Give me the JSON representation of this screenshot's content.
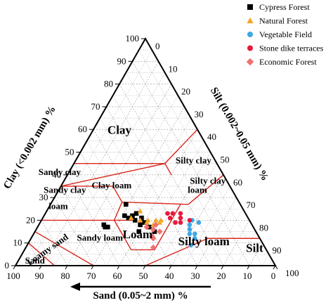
{
  "chart_data": {
    "type": "scatter",
    "subtype": "ternary",
    "axes": {
      "sand": {
        "label": "Sand (0.05~2 mm) %",
        "ticks": [
          100,
          90,
          80,
          70,
          60,
          50,
          40,
          30,
          20,
          10,
          0
        ]
      },
      "clay": {
        "label": "Clay (<0.002 mm) %",
        "ticks": [
          0,
          10,
          20,
          30,
          40,
          50,
          60,
          70,
          80,
          90,
          100
        ]
      },
      "silt": {
        "label": "Silt (0.002~0.05 mm) %",
        "ticks": [
          0,
          10,
          20,
          30,
          40,
          50,
          60,
          70,
          80,
          90,
          100
        ]
      }
    },
    "zones": [
      {
        "id": "clay",
        "label": "Clay",
        "size": "big"
      },
      {
        "id": "sandy-clay",
        "label": "Sandy clay"
      },
      {
        "id": "silty-clay",
        "label": "Silty clay"
      },
      {
        "id": "sandy-clay-loam-1",
        "label": "Sandy clay"
      },
      {
        "id": "sandy-clay-loam-2",
        "label": "loam"
      },
      {
        "id": "clay-loam",
        "label": "Clay loam"
      },
      {
        "id": "silty-clay-loam-1",
        "label": "Silty clay"
      },
      {
        "id": "silty-clay-loam-2",
        "label": "loam"
      },
      {
        "id": "sandy-loam",
        "label": "Sandy  loam"
      },
      {
        "id": "loam",
        "label": "Loam",
        "size": "big"
      },
      {
        "id": "silty-loam",
        "label": "Silty loam",
        "size": "big"
      },
      {
        "id": "loamy-sand",
        "label": "Loamy sand"
      },
      {
        "id": "sand",
        "label": "Sand"
      },
      {
        "id": "silt",
        "label": "Silt",
        "size": "big"
      }
    ],
    "legend_position": "top-right",
    "grid": true,
    "series": [
      {
        "name": "Cypress Forest",
        "color": "#000000",
        "marker": "square",
        "points": [
          {
            "sand": 44,
            "clay": 27
          },
          {
            "sand": 47,
            "clay": 22
          },
          {
            "sand": 44,
            "clay": 22
          },
          {
            "sand": 42,
            "clay": 23
          },
          {
            "sand": 44,
            "clay": 20
          },
          {
            "sand": 43,
            "clay": 18
          },
          {
            "sand": 41,
            "clay": 19
          },
          {
            "sand": 40,
            "clay": 17
          },
          {
            "sand": 57,
            "clay": 18
          },
          {
            "sand": 57,
            "clay": 17
          },
          {
            "sand": 56,
            "clay": 17
          },
          {
            "sand": 45,
            "clay": 15
          },
          {
            "sand": 39,
            "clay": 15
          },
          {
            "sand": 46,
            "clay": 21
          },
          {
            "sand": 41,
            "clay": 21
          }
        ]
      },
      {
        "name": "Natural Forest",
        "color": "#f5a623",
        "marker": "triangle",
        "points": [
          {
            "sand": 40,
            "clay": 24
          },
          {
            "sand": 45,
            "clay": 21
          },
          {
            "sand": 42,
            "clay": 20
          },
          {
            "sand": 39,
            "clay": 20
          },
          {
            "sand": 40,
            "clay": 19
          },
          {
            "sand": 38,
            "clay": 18
          },
          {
            "sand": 36,
            "clay": 20
          },
          {
            "sand": 35,
            "clay": 19
          },
          {
            "sand": 34,
            "clay": 20
          }
        ]
      },
      {
        "name": "Vegetable Field",
        "color": "#3ea8e5",
        "marker": "circle",
        "points": [
          {
            "sand": 24,
            "clay": 18
          },
          {
            "sand": 25,
            "clay": 16
          },
          {
            "sand": 26,
            "clay": 14
          },
          {
            "sand": 24,
            "clay": 14
          },
          {
            "sand": 25,
            "clay": 12
          },
          {
            "sand": 28,
            "clay": 9
          },
          {
            "sand": 20,
            "clay": 19
          },
          {
            "sand": 22,
            "clay": 20
          }
        ]
      },
      {
        "name": "Stone dike terraces",
        "color": "#e8193c",
        "marker": "circle",
        "points": [
          {
            "sand": 30,
            "clay": 23
          },
          {
            "sand": 28,
            "clay": 23
          },
          {
            "sand": 25,
            "clay": 23
          },
          {
            "sand": 26,
            "clay": 21
          },
          {
            "sand": 29,
            "clay": 19
          },
          {
            "sand": 27,
            "clay": 19
          },
          {
            "sand": 23,
            "clay": 20
          },
          {
            "sand": 30,
            "clay": 21
          }
        ]
      },
      {
        "name": "Economic Forest",
        "color": "#f07070",
        "marker": "diamond",
        "points": [
          {
            "sand": 37,
            "clay": 18
          },
          {
            "sand": 41,
            "clay": 17
          },
          {
            "sand": 39,
            "clay": 16
          },
          {
            "sand": 41,
            "clay": 13
          },
          {
            "sand": 41,
            "clay": 12
          },
          {
            "sand": 43,
            "clay": 8
          },
          {
            "sand": 37,
            "clay": 15
          }
        ]
      }
    ]
  }
}
